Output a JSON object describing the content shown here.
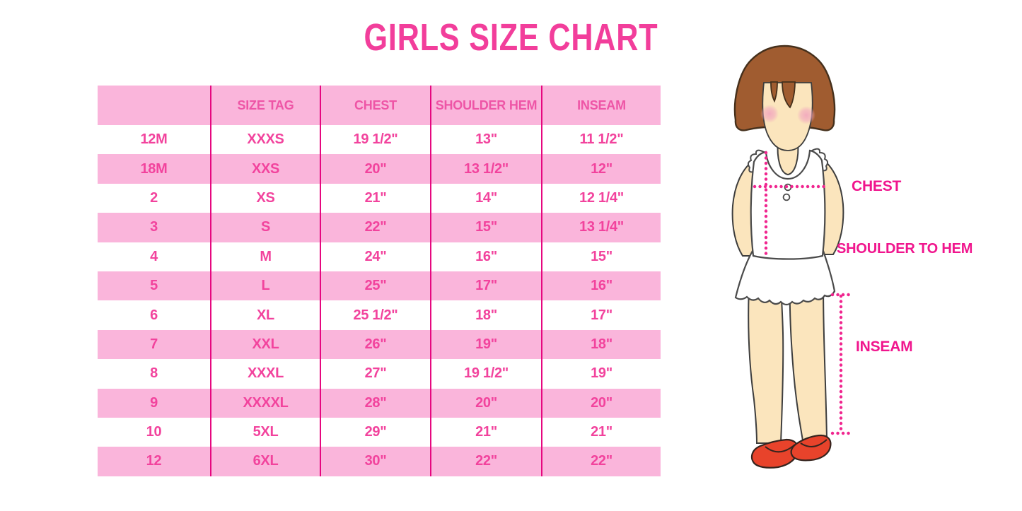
{
  "title": "GIRLS SIZE CHART",
  "chart_data": {
    "type": "table",
    "title": "GIRLS SIZE CHART",
    "columns": [
      "",
      "SIZE TAG",
      "CHEST",
      "SHOULDER HEM",
      "INSEAM"
    ],
    "rows": [
      [
        "12M",
        "XXXS",
        "19 1/2\"",
        "13\"",
        "11 1/2\""
      ],
      [
        "18M",
        "XXS",
        "20\"",
        "13 1/2\"",
        "12\""
      ],
      [
        "2",
        "XS",
        "21\"",
        "14\"",
        "12 1/4\""
      ],
      [
        "3",
        "S",
        "22\"",
        "15\"",
        "13 1/4\""
      ],
      [
        "4",
        "M",
        "24\"",
        "16\"",
        "15\""
      ],
      [
        "5",
        "L",
        "25\"",
        "17\"",
        "16\""
      ],
      [
        "6",
        "XL",
        "25 1/2\"",
        "18\"",
        "17\""
      ],
      [
        "7",
        "XXL",
        "26\"",
        "19\"",
        "18\""
      ],
      [
        "8",
        "XXXL",
        "27\"",
        "19 1/2\"",
        "19\""
      ],
      [
        "9",
        "XXXXL",
        "28\"",
        "20\"",
        "20\""
      ],
      [
        "10",
        "5XL",
        "29\"",
        "21\"",
        "21\""
      ],
      [
        "12",
        "6XL",
        "30\"",
        "22\"",
        "22\""
      ]
    ],
    "row_stripe_pattern": "white/pink alternating, header pink"
  },
  "diagram": {
    "chest_label": "CHEST",
    "shoulder_to_hem_label": "SHOULDER TO HEM",
    "inseam_label": "INSEAM",
    "figure": "girl-with-bob-haircut-white-dress-red-shoes"
  },
  "colors": {
    "title_pink": "#F23E9B",
    "cell_text_pink": "#F2439D",
    "header_text_pink": "#EE55A6",
    "row_band_pink": "#FAB5DB",
    "divider_magenta": "#E6077F",
    "label_magenta": "#F0158D",
    "dotted_line_pink": "#F0268F",
    "hair_brown": "#A05C30",
    "skin": "#FBE5BD",
    "blush": "#F2A9BE",
    "shoe_red": "#E8432B"
  }
}
